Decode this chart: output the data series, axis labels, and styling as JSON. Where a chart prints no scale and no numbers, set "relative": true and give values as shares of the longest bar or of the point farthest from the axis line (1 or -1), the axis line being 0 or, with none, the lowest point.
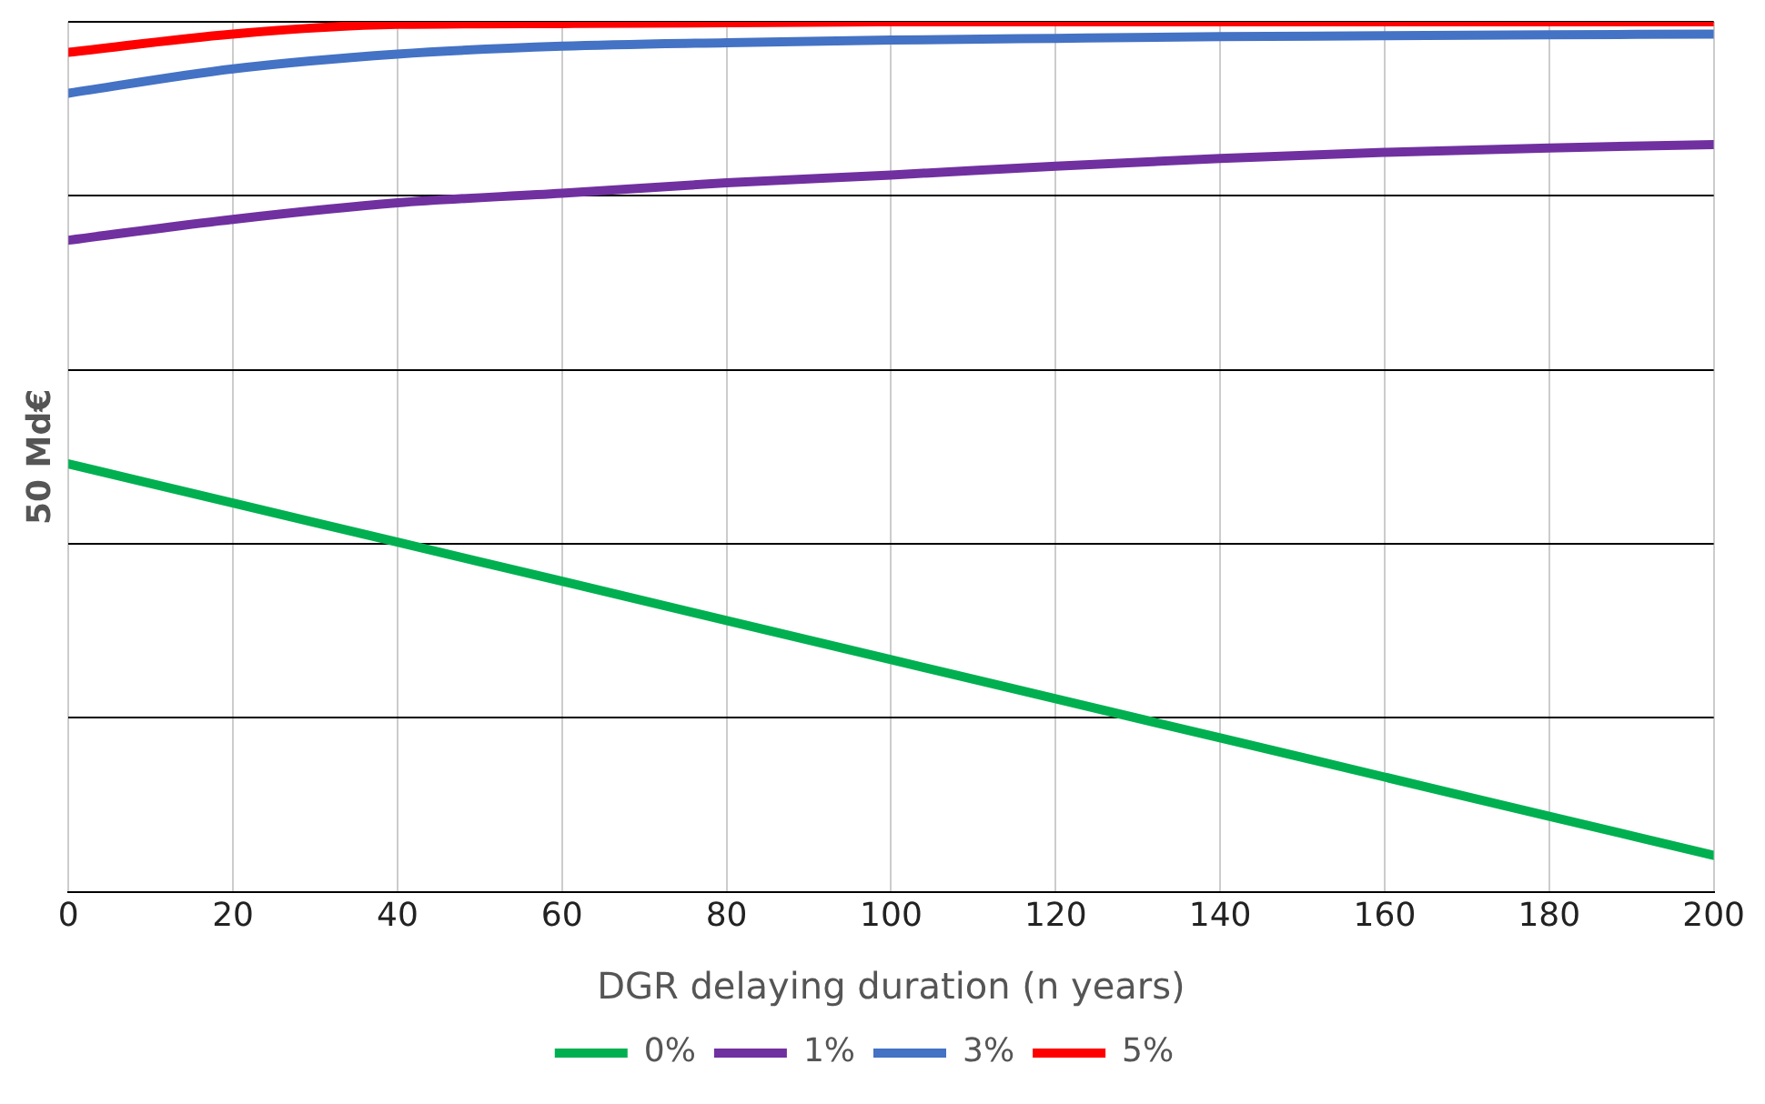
{
  "chart_data": {
    "type": "line",
    "xlabel": "DGR delaying duration (n years)",
    "ylabel": "50 Md€",
    "relative": true,
    "x": [
      0,
      20,
      40,
      60,
      80,
      100,
      120,
      140,
      160,
      180,
      200
    ],
    "xlim": [
      0,
      200
    ],
    "xticks": [
      0,
      20,
      40,
      60,
      80,
      100,
      120,
      140,
      160,
      180,
      200
    ],
    "grid": true,
    "legend": "bottom",
    "tick_labels": "x",
    "marker": "none",
    "line_style": "solid",
    "series": [
      {
        "name": "0%",
        "color": "#00b050",
        "values": [
          0.492,
          0.447,
          0.402,
          0.357,
          0.312,
          0.267,
          0.222,
          0.177,
          0.132,
          0.087,
          0.042
        ]
      },
      {
        "name": "1%",
        "color": "#7030a0",
        "values": [
          0.749,
          0.773,
          0.792,
          0.803,
          0.815,
          0.824,
          0.834,
          0.843,
          0.85,
          0.855,
          0.859
        ]
      },
      {
        "name": "3%",
        "color": "#4472c4",
        "values": [
          0.918,
          0.946,
          0.963,
          0.972,
          0.976,
          0.979,
          0.981,
          0.983,
          0.984,
          0.985,
          0.986
        ]
      },
      {
        "name": "5%",
        "color": "#ff0000",
        "values": [
          0.965,
          0.986,
          0.997,
          0.998,
          0.999,
          1,
          1,
          1,
          1,
          1,
          1
        ]
      }
    ]
  }
}
